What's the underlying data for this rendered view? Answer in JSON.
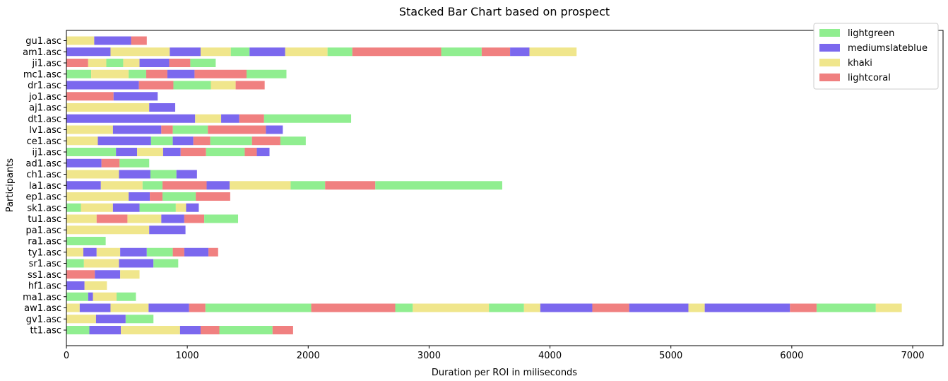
{
  "chart_data": {
    "type": "bar",
    "orientation": "horizontal",
    "stacked": true,
    "title": "Stacked Bar Chart based on prospect",
    "xlabel": "Duration per ROI in miliseconds",
    "ylabel": "Participants",
    "xlim": [
      0,
      7250
    ],
    "xticks": [
      0,
      1000,
      2000,
      3000,
      4000,
      5000,
      6000,
      7000
    ],
    "grid": false,
    "legend_position": "top-right",
    "legend": [
      {
        "label": "lightgreen",
        "color": "#90ee90"
      },
      {
        "label": "mediumslateblue",
        "color": "#7b68ee"
      },
      {
        "label": "khaki",
        "color": "#f0e68c"
      },
      {
        "label": "lightcoral",
        "color": "#f08080"
      }
    ],
    "colors": {
      "lightgreen": "#90ee90",
      "mediumslateblue": "#7b68ee",
      "khaki": "#f0e68c",
      "lightcoral": "#f08080"
    },
    "participants": [
      {
        "label": "gu1.asc",
        "segments": [
          [
            "khaki",
            0,
            230
          ],
          [
            "mediumslateblue",
            230,
            535
          ],
          [
            "lightcoral",
            535,
            665
          ]
        ]
      },
      {
        "label": "am1.asc",
        "segments": [
          [
            "mediumslateblue",
            0,
            365
          ],
          [
            "khaki",
            365,
            855
          ],
          [
            "mediumslateblue",
            855,
            1110
          ],
          [
            "khaki",
            1110,
            1360
          ],
          [
            "lightgreen",
            1360,
            1515
          ],
          [
            "mediumslateblue",
            1515,
            1810
          ],
          [
            "khaki",
            1810,
            2160
          ],
          [
            "lightgreen",
            2160,
            2365
          ],
          [
            "lightcoral",
            2365,
            3100
          ],
          [
            "lightgreen",
            3100,
            3435
          ],
          [
            "lightcoral",
            3435,
            3670
          ],
          [
            "mediumslateblue",
            3670,
            3830
          ],
          [
            "khaki",
            3830,
            4220
          ]
        ]
      },
      {
        "label": "ji1.asc",
        "segments": [
          [
            "lightcoral",
            0,
            180
          ],
          [
            "khaki",
            180,
            330
          ],
          [
            "lightgreen",
            330,
            470
          ],
          [
            "khaki",
            470,
            605
          ],
          [
            "mediumslateblue",
            605,
            850
          ],
          [
            "lightcoral",
            850,
            1025
          ],
          [
            "lightgreen",
            1025,
            1235
          ]
        ]
      },
      {
        "label": "mc1.asc",
        "segments": [
          [
            "lightgreen",
            0,
            205
          ],
          [
            "khaki",
            205,
            515
          ],
          [
            "lightgreen",
            515,
            660
          ],
          [
            "lightcoral",
            660,
            835
          ],
          [
            "mediumslateblue",
            835,
            1060
          ],
          [
            "lightcoral",
            1060,
            1490
          ],
          [
            "lightgreen",
            1490,
            1820
          ]
        ]
      },
      {
        "label": "dr1.asc",
        "segments": [
          [
            "mediumslateblue",
            0,
            600
          ],
          [
            "lightcoral",
            600,
            885
          ],
          [
            "lightgreen",
            885,
            1195
          ],
          [
            "khaki",
            1195,
            1400
          ],
          [
            "lightcoral",
            1400,
            1640
          ]
        ]
      },
      {
        "label": "jo1.asc",
        "segments": [
          [
            "lightcoral",
            0,
            390
          ],
          [
            "mediumslateblue",
            390,
            755
          ]
        ]
      },
      {
        "label": "aj1.asc",
        "segments": [
          [
            "khaki",
            0,
            685
          ],
          [
            "mediumslateblue",
            685,
            900
          ]
        ]
      },
      {
        "label": "dt1.asc",
        "segments": [
          [
            "mediumslateblue",
            0,
            1065
          ],
          [
            "khaki",
            1065,
            1280
          ],
          [
            "mediumslateblue",
            1280,
            1430
          ],
          [
            "lightcoral",
            1430,
            1635
          ],
          [
            "lightgreen",
            1635,
            2355
          ]
        ]
      },
      {
        "label": "lv1.asc",
        "segments": [
          [
            "khaki",
            0,
            385
          ],
          [
            "mediumslateblue",
            385,
            785
          ],
          [
            "lightcoral",
            785,
            880
          ],
          [
            "lightgreen",
            880,
            1170
          ],
          [
            "lightcoral",
            1170,
            1650
          ],
          [
            "mediumslateblue",
            1650,
            1790
          ]
        ]
      },
      {
        "label": "ce1.asc",
        "segments": [
          [
            "khaki",
            0,
            260
          ],
          [
            "mediumslateblue",
            260,
            700
          ],
          [
            "lightgreen",
            700,
            880
          ],
          [
            "mediumslateblue",
            880,
            1050
          ],
          [
            "lightcoral",
            1050,
            1190
          ],
          [
            "lightgreen",
            1190,
            1535
          ],
          [
            "lightcoral",
            1535,
            1770
          ],
          [
            "lightgreen",
            1770,
            1980
          ]
        ]
      },
      {
        "label": "ij1.asc",
        "segments": [
          [
            "lightgreen",
            0,
            410
          ],
          [
            "mediumslateblue",
            410,
            585
          ],
          [
            "khaki",
            585,
            800
          ],
          [
            "mediumslateblue",
            800,
            945
          ],
          [
            "lightcoral",
            945,
            1155
          ],
          [
            "lightgreen",
            1155,
            1475
          ],
          [
            "lightcoral",
            1475,
            1575
          ],
          [
            "mediumslateblue",
            1575,
            1680
          ]
        ]
      },
      {
        "label": "ad1.asc",
        "segments": [
          [
            "mediumslateblue",
            0,
            290
          ],
          [
            "lightcoral",
            290,
            440
          ],
          [
            "lightgreen",
            440,
            685
          ]
        ]
      },
      {
        "label": "ch1.asc",
        "segments": [
          [
            "khaki",
            0,
            435
          ],
          [
            "mediumslateblue",
            435,
            695
          ],
          [
            "lightgreen",
            695,
            910
          ],
          [
            "mediumslateblue",
            910,
            1080
          ]
        ]
      },
      {
        "label": "la1.asc",
        "segments": [
          [
            "mediumslateblue",
            0,
            285
          ],
          [
            "khaki",
            285,
            630
          ],
          [
            "lightgreen",
            630,
            795
          ],
          [
            "lightcoral",
            795,
            1160
          ],
          [
            "mediumslateblue",
            1160,
            1350
          ],
          [
            "khaki",
            1350,
            1855
          ],
          [
            "lightgreen",
            1855,
            2140
          ],
          [
            "lightcoral",
            2140,
            2555
          ],
          [
            "lightgreen",
            2555,
            3605
          ]
        ]
      },
      {
        "label": "ep1.asc",
        "segments": [
          [
            "khaki",
            0,
            515
          ],
          [
            "mediumslateblue",
            515,
            690
          ],
          [
            "lightcoral",
            690,
            795
          ],
          [
            "lightgreen",
            795,
            1070
          ],
          [
            "lightcoral",
            1070,
            1355
          ]
        ]
      },
      {
        "label": "sk1.asc",
        "segments": [
          [
            "lightgreen",
            0,
            120
          ],
          [
            "khaki",
            120,
            385
          ],
          [
            "mediumslateblue",
            385,
            605
          ],
          [
            "lightgreen",
            605,
            905
          ],
          [
            "khaki",
            905,
            990
          ],
          [
            "mediumslateblue",
            990,
            1095
          ]
        ]
      },
      {
        "label": "tu1.asc",
        "segments": [
          [
            "khaki",
            0,
            250
          ],
          [
            "lightcoral",
            250,
            505
          ],
          [
            "khaki",
            505,
            785
          ],
          [
            "mediumslateblue",
            785,
            975
          ],
          [
            "lightcoral",
            975,
            1140
          ],
          [
            "lightgreen",
            1140,
            1420
          ]
        ]
      },
      {
        "label": "pa1.asc",
        "segments": [
          [
            "khaki",
            0,
            685
          ],
          [
            "mediumslateblue",
            685,
            985
          ]
        ]
      },
      {
        "label": "ra1.asc",
        "segments": [
          [
            "lightgreen",
            0,
            325
          ]
        ]
      },
      {
        "label": "ty1.asc",
        "segments": [
          [
            "khaki",
            0,
            140
          ],
          [
            "mediumslateblue",
            140,
            250
          ],
          [
            "khaki",
            250,
            445
          ],
          [
            "mediumslateblue",
            445,
            665
          ],
          [
            "lightgreen",
            665,
            880
          ],
          [
            "lightcoral",
            880,
            975
          ],
          [
            "mediumslateblue",
            975,
            1175
          ],
          [
            "lightcoral",
            1175,
            1255
          ]
        ]
      },
      {
        "label": "sr1.asc",
        "segments": [
          [
            "lightgreen",
            0,
            145
          ],
          [
            "khaki",
            145,
            435
          ],
          [
            "mediumslateblue",
            435,
            720
          ],
          [
            "lightgreen",
            720,
            925
          ]
        ]
      },
      {
        "label": "ss1.asc",
        "segments": [
          [
            "lightcoral",
            0,
            235
          ],
          [
            "mediumslateblue",
            235,
            445
          ],
          [
            "khaki",
            445,
            605
          ]
        ]
      },
      {
        "label": "hf1.asc",
        "segments": [
          [
            "mediumslateblue",
            0,
            150
          ],
          [
            "khaki",
            150,
            335
          ]
        ]
      },
      {
        "label": "ma1.asc",
        "segments": [
          [
            "lightgreen",
            0,
            180
          ],
          [
            "mediumslateblue",
            180,
            220
          ],
          [
            "khaki",
            220,
            415
          ],
          [
            "lightgreen",
            415,
            575
          ]
        ]
      },
      {
        "label": "aw1.asc",
        "segments": [
          [
            "khaki",
            0,
            110
          ],
          [
            "mediumslateblue",
            110,
            365
          ],
          [
            "khaki",
            365,
            680
          ],
          [
            "mediumslateblue",
            680,
            1015
          ],
          [
            "lightcoral",
            1015,
            1150
          ],
          [
            "lightgreen",
            1150,
            2025
          ],
          [
            "lightcoral",
            2025,
            2720
          ],
          [
            "lightgreen",
            2720,
            2865
          ],
          [
            "khaki",
            2865,
            3495
          ],
          [
            "lightgreen",
            3495,
            3785
          ],
          [
            "khaki",
            3785,
            3920
          ],
          [
            "mediumslateblue",
            3920,
            4350
          ],
          [
            "lightcoral",
            4350,
            4655
          ],
          [
            "mediumslateblue",
            4655,
            5145
          ],
          [
            "khaki",
            5145,
            5280
          ],
          [
            "mediumslateblue",
            5280,
            5985
          ],
          [
            "lightcoral",
            5985,
            6205
          ],
          [
            "lightgreen",
            6205,
            6695
          ],
          [
            "khaki",
            6695,
            6910
          ]
        ]
      },
      {
        "label": "gv1.asc",
        "segments": [
          [
            "khaki",
            0,
            245
          ],
          [
            "mediumslateblue",
            245,
            490
          ],
          [
            "lightgreen",
            490,
            720
          ]
        ]
      },
      {
        "label": "tt1.asc",
        "segments": [
          [
            "lightgreen",
            0,
            190
          ],
          [
            "mediumslateblue",
            190,
            450
          ],
          [
            "khaki",
            450,
            940
          ],
          [
            "mediumslateblue",
            940,
            1110
          ],
          [
            "lightcoral",
            1110,
            1265
          ],
          [
            "lightgreen",
            1265,
            1705
          ],
          [
            "lightcoral",
            1705,
            1875
          ]
        ]
      }
    ]
  }
}
